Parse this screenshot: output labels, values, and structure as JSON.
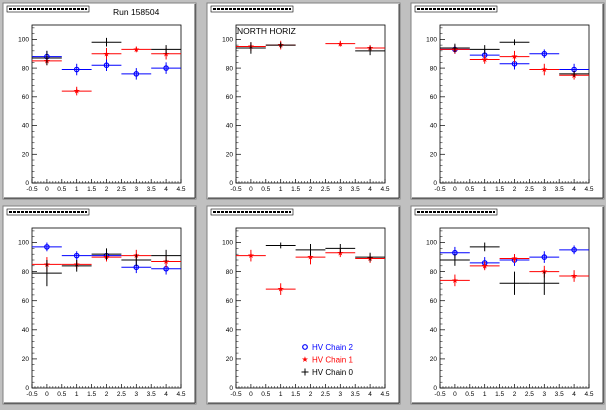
{
  "header": {
    "run_label": "Run 158504",
    "det_label": "NORTH HORIZ"
  },
  "colors": {
    "blue": "#0000ff",
    "red": "#ff0000",
    "black": "#000000"
  },
  "legend": [
    "HV Chain 2",
    "HV Chain 1",
    "HV Chain 0"
  ],
  "chart_data": [
    {
      "type": "scatter",
      "title": "",
      "xlim": [
        -0.5,
        4.5
      ],
      "ylim": [
        0,
        110
      ],
      "x_ticks": [
        -0.5,
        0,
        0.5,
        1,
        1.5,
        2,
        2.5,
        3,
        3.5,
        4,
        4.5
      ],
      "y_ticks": [
        0,
        20,
        40,
        60,
        80,
        100
      ],
      "series": [
        {
          "name": "HV Chain 2",
          "x": [
            0,
            1,
            2,
            3,
            4
          ],
          "y": [
            88,
            79,
            82,
            76,
            80
          ],
          "yerr": [
            4,
            4,
            4,
            4,
            4
          ]
        },
        {
          "name": "HV Chain 1",
          "x": [
            0,
            1,
            2,
            3,
            4
          ],
          "y": [
            85,
            64,
            90,
            93,
            90
          ],
          "yerr": [
            3,
            3,
            4,
            2,
            4
          ]
        },
        {
          "name": "HV Chain 0",
          "x": [
            0,
            2,
            4
          ],
          "y": [
            87,
            98,
            93
          ],
          "yerr": [
            5,
            3,
            3
          ]
        }
      ]
    },
    {
      "type": "scatter",
      "title": "",
      "xlim": [
        -0.5,
        4.5
      ],
      "ylim": [
        0,
        110
      ],
      "x_ticks": [
        -0.5,
        0,
        0.5,
        1,
        1.5,
        2,
        2.5,
        3,
        3.5,
        4,
        4.5
      ],
      "y_ticks": [
        0,
        20,
        40,
        60,
        80,
        100
      ],
      "series": [
        {
          "name": "HV Chain 2",
          "x": [],
          "y": [],
          "yerr": []
        },
        {
          "name": "HV Chain 1",
          "x": [
            0,
            1,
            3,
            4
          ],
          "y": [
            95,
            96,
            97,
            94
          ],
          "yerr": [
            3,
            3,
            2,
            2
          ]
        },
        {
          "name": "HV Chain 0",
          "x": [
            0,
            1,
            4
          ],
          "y": [
            94,
            96,
            92
          ],
          "yerr": [
            4,
            2,
            3
          ]
        }
      ]
    },
    {
      "type": "scatter",
      "title": "",
      "xlim": [
        -0.5,
        4.5
      ],
      "ylim": [
        0,
        110
      ],
      "x_ticks": [
        -0.5,
        0,
        0.5,
        1,
        1.5,
        2,
        2.5,
        3,
        3.5,
        4,
        4.5
      ],
      "y_ticks": [
        0,
        20,
        40,
        60,
        80,
        100
      ],
      "series": [
        {
          "name": "HV Chain 2",
          "x": [
            0,
            1,
            2,
            3,
            4
          ],
          "y": [
            93,
            89,
            83,
            90,
            79
          ],
          "yerr": [
            3,
            4,
            4,
            3,
            4
          ]
        },
        {
          "name": "HV Chain 1",
          "x": [
            0,
            1,
            2,
            3,
            4
          ],
          "y": [
            93,
            86,
            88,
            79,
            75
          ],
          "yerr": [
            3,
            3,
            4,
            4,
            3
          ]
        },
        {
          "name": "HV Chain 0",
          "x": [
            0,
            1,
            2,
            4
          ],
          "y": [
            94,
            93,
            98,
            76
          ],
          "yerr": [
            3,
            3,
            2,
            2
          ]
        }
      ]
    },
    {
      "type": "scatter",
      "title": "",
      "xlim": [
        -0.5,
        4.5
      ],
      "ylim": [
        0,
        110
      ],
      "x_ticks": [
        -0.5,
        0,
        0.5,
        1,
        1.5,
        2,
        2.5,
        3,
        3.5,
        4,
        4.5
      ],
      "y_ticks": [
        0,
        20,
        40,
        60,
        80,
        100
      ],
      "series": [
        {
          "name": "HV Chain 2",
          "x": [
            0,
            1,
            2,
            3,
            4
          ],
          "y": [
            97,
            91,
            91,
            83,
            82
          ],
          "yerr": [
            3,
            3,
            4,
            4,
            4
          ]
        },
        {
          "name": "HV Chain 1",
          "x": [
            0,
            1,
            2,
            3,
            4
          ],
          "y": [
            85,
            85,
            90,
            91,
            87
          ],
          "yerr": [
            5,
            3,
            3,
            4,
            4
          ]
        },
        {
          "name": "HV Chain 0",
          "x": [
            0,
            1,
            2,
            3,
            4
          ],
          "y": [
            79,
            84,
            92,
            88,
            91
          ],
          "yerr": [
            9,
            4,
            4,
            4,
            4
          ]
        }
      ]
    },
    {
      "type": "scatter",
      "title": "",
      "xlim": [
        -0.5,
        4.5
      ],
      "ylim": [
        0,
        110
      ],
      "x_ticks": [
        -0.5,
        0,
        0.5,
        1,
        1.5,
        2,
        2.5,
        3,
        3.5,
        4,
        4.5
      ],
      "y_ticks": [
        0,
        20,
        40,
        60,
        80,
        100
      ],
      "series": [
        {
          "name": "HV Chain 2",
          "x": [],
          "y": [],
          "yerr": []
        },
        {
          "name": "HV Chain 1",
          "x": [
            0,
            1,
            2,
            3,
            4
          ],
          "y": [
            91,
            68,
            90,
            93,
            89
          ],
          "yerr": [
            4,
            4,
            5,
            3,
            3
          ]
        },
        {
          "name": "HV Chain 0",
          "x": [
            1,
            2,
            3,
            4
          ],
          "y": [
            98,
            95,
            96,
            90
          ],
          "yerr": [
            2,
            4,
            3,
            3
          ]
        }
      ]
    },
    {
      "type": "scatter",
      "title": "",
      "xlim": [
        -0.5,
        4.5
      ],
      "ylim": [
        0,
        110
      ],
      "x_ticks": [
        -0.5,
        0,
        0.5,
        1,
        1.5,
        2,
        2.5,
        3,
        3.5,
        4,
        4.5
      ],
      "y_ticks": [
        0,
        20,
        40,
        60,
        80,
        100
      ],
      "series": [
        {
          "name": "HV Chain 2",
          "x": [
            0,
            1,
            2,
            3,
            4
          ],
          "y": [
            93,
            86,
            88,
            90,
            95
          ],
          "yerr": [
            4,
            4,
            4,
            4,
            3
          ]
        },
        {
          "name": "HV Chain 1",
          "x": [
            0,
            1,
            2,
            3,
            4
          ],
          "y": [
            74,
            84,
            89,
            80,
            77
          ],
          "yerr": [
            4,
            3,
            3,
            4,
            4
          ]
        },
        {
          "name": "HV Chain 0",
          "x": [
            0,
            1,
            2,
            3
          ],
          "y": [
            88,
            97,
            72,
            72
          ],
          "yerr": [
            4,
            3,
            8,
            8
          ]
        }
      ]
    }
  ]
}
